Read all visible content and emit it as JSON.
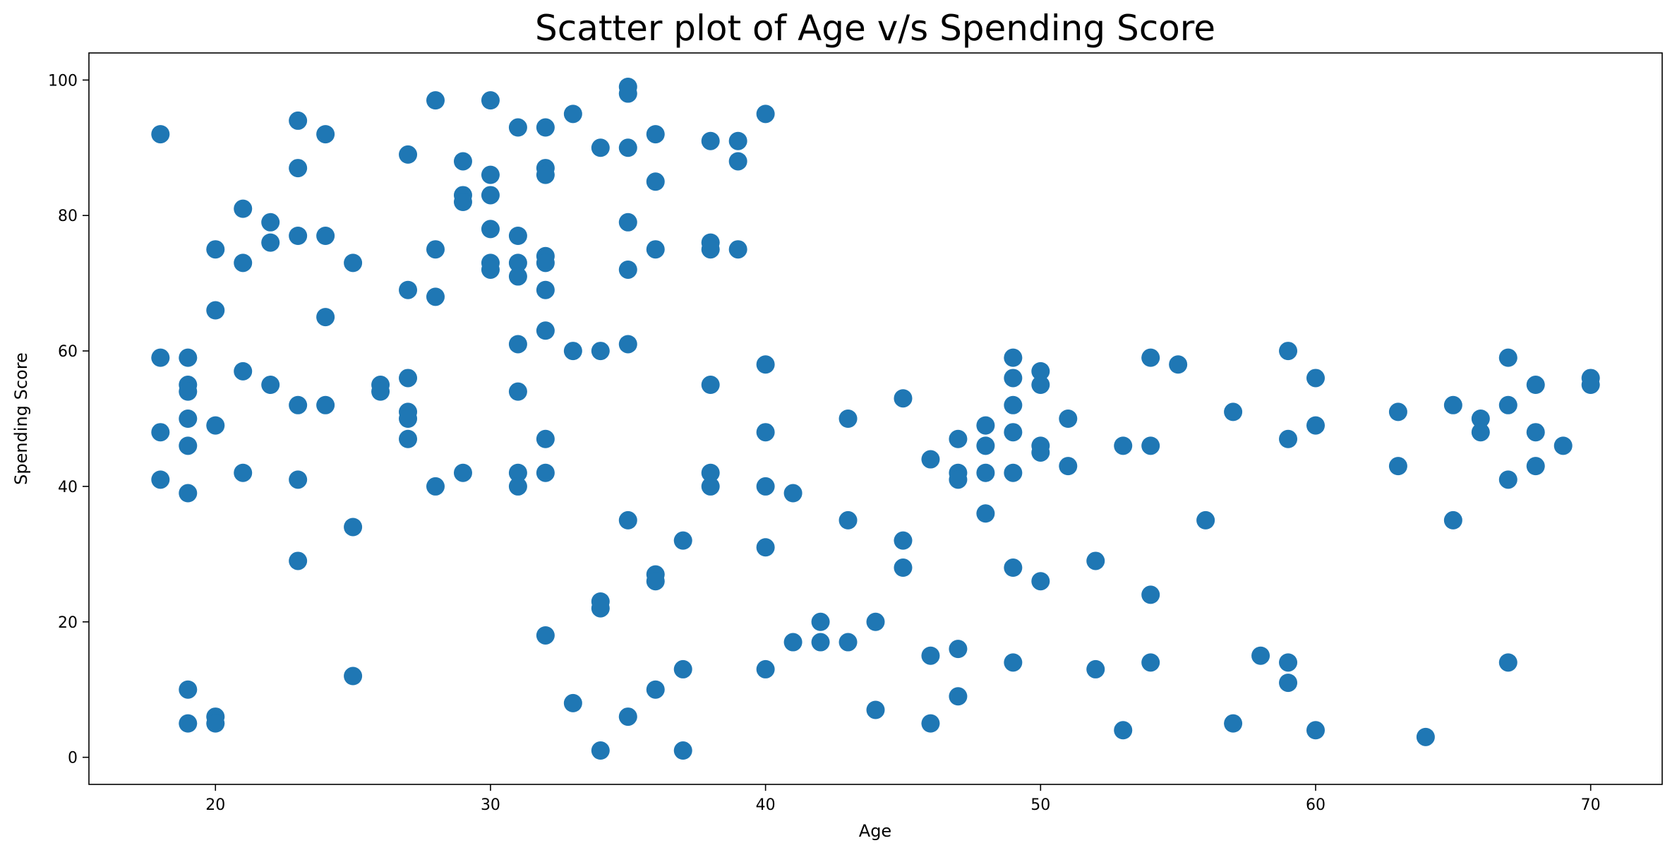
{
  "chart_data": {
    "type": "scatter",
    "title": "Scatter plot of Age v/s Spending Score",
    "xlabel": "Age",
    "ylabel": "Spending Score",
    "xlim": [
      15.4,
      72.6
    ],
    "ylim": [
      -4,
      104
    ],
    "xticks": [
      20,
      30,
      40,
      50,
      60,
      70
    ],
    "yticks": [
      0,
      20,
      40,
      60,
      80,
      100
    ],
    "grid": false,
    "legend": "none",
    "color": "#1f77b4",
    "points": [
      {
        "x": 18,
        "y": 92
      },
      {
        "x": 18,
        "y": 59
      },
      {
        "x": 18,
        "y": 48
      },
      {
        "x": 18,
        "y": 41
      },
      {
        "x": 19,
        "y": 59
      },
      {
        "x": 19,
        "y": 55
      },
      {
        "x": 19,
        "y": 54
      },
      {
        "x": 19,
        "y": 50
      },
      {
        "x": 19,
        "y": 46
      },
      {
        "x": 19,
        "y": 39
      },
      {
        "x": 19,
        "y": 10
      },
      {
        "x": 19,
        "y": 5
      },
      {
        "x": 20,
        "y": 75
      },
      {
        "x": 20,
        "y": 66
      },
      {
        "x": 20,
        "y": 49
      },
      {
        "x": 20,
        "y": 6
      },
      {
        "x": 20,
        "y": 5
      },
      {
        "x": 21,
        "y": 81
      },
      {
        "x": 21,
        "y": 73
      },
      {
        "x": 21,
        "y": 57
      },
      {
        "x": 21,
        "y": 42
      },
      {
        "x": 22,
        "y": 79
      },
      {
        "x": 22,
        "y": 76
      },
      {
        "x": 22,
        "y": 55
      },
      {
        "x": 23,
        "y": 94
      },
      {
        "x": 23,
        "y": 87
      },
      {
        "x": 23,
        "y": 77
      },
      {
        "x": 23,
        "y": 52
      },
      {
        "x": 23,
        "y": 41
      },
      {
        "x": 23,
        "y": 29
      },
      {
        "x": 24,
        "y": 92
      },
      {
        "x": 24,
        "y": 77
      },
      {
        "x": 24,
        "y": 65
      },
      {
        "x": 24,
        "y": 52
      },
      {
        "x": 25,
        "y": 73
      },
      {
        "x": 25,
        "y": 34
      },
      {
        "x": 25,
        "y": 12
      },
      {
        "x": 26,
        "y": 55
      },
      {
        "x": 26,
        "y": 54
      },
      {
        "x": 27,
        "y": 89
      },
      {
        "x": 27,
        "y": 69
      },
      {
        "x": 27,
        "y": 56
      },
      {
        "x": 27,
        "y": 51
      },
      {
        "x": 27,
        "y": 50
      },
      {
        "x": 27,
        "y": 47
      },
      {
        "x": 28,
        "y": 97
      },
      {
        "x": 28,
        "y": 75
      },
      {
        "x": 28,
        "y": 68
      },
      {
        "x": 28,
        "y": 40
      },
      {
        "x": 29,
        "y": 88
      },
      {
        "x": 29,
        "y": 83
      },
      {
        "x": 29,
        "y": 82
      },
      {
        "x": 29,
        "y": 42
      },
      {
        "x": 30,
        "y": 97
      },
      {
        "x": 30,
        "y": 86
      },
      {
        "x": 30,
        "y": 83
      },
      {
        "x": 30,
        "y": 78
      },
      {
        "x": 30,
        "y": 73
      },
      {
        "x": 30,
        "y": 72
      },
      {
        "x": 31,
        "y": 93
      },
      {
        "x": 31,
        "y": 77
      },
      {
        "x": 31,
        "y": 73
      },
      {
        "x": 31,
        "y": 71
      },
      {
        "x": 31,
        "y": 61
      },
      {
        "x": 31,
        "y": 54
      },
      {
        "x": 31,
        "y": 42
      },
      {
        "x": 31,
        "y": 40
      },
      {
        "x": 32,
        "y": 93
      },
      {
        "x": 32,
        "y": 87
      },
      {
        "x": 32,
        "y": 86
      },
      {
        "x": 32,
        "y": 74
      },
      {
        "x": 32,
        "y": 73
      },
      {
        "x": 32,
        "y": 69
      },
      {
        "x": 32,
        "y": 63
      },
      {
        "x": 32,
        "y": 47
      },
      {
        "x": 32,
        "y": 42
      },
      {
        "x": 32,
        "y": 18
      },
      {
        "x": 33,
        "y": 95
      },
      {
        "x": 33,
        "y": 60
      },
      {
        "x": 33,
        "y": 8
      },
      {
        "x": 34,
        "y": 90
      },
      {
        "x": 34,
        "y": 60
      },
      {
        "x": 34,
        "y": 23
      },
      {
        "x": 34,
        "y": 22
      },
      {
        "x": 34,
        "y": 1
      },
      {
        "x": 35,
        "y": 99
      },
      {
        "x": 35,
        "y": 98
      },
      {
        "x": 35,
        "y": 90
      },
      {
        "x": 35,
        "y": 79
      },
      {
        "x": 35,
        "y": 72
      },
      {
        "x": 35,
        "y": 61
      },
      {
        "x": 35,
        "y": 35
      },
      {
        "x": 35,
        "y": 6
      },
      {
        "x": 36,
        "y": 92
      },
      {
        "x": 36,
        "y": 85
      },
      {
        "x": 36,
        "y": 75
      },
      {
        "x": 36,
        "y": 27
      },
      {
        "x": 36,
        "y": 26
      },
      {
        "x": 36,
        "y": 10
      },
      {
        "x": 37,
        "y": 32
      },
      {
        "x": 37,
        "y": 13
      },
      {
        "x": 37,
        "y": 1
      },
      {
        "x": 38,
        "y": 91
      },
      {
        "x": 38,
        "y": 76
      },
      {
        "x": 38,
        "y": 75
      },
      {
        "x": 38,
        "y": 55
      },
      {
        "x": 38,
        "y": 42
      },
      {
        "x": 38,
        "y": 40
      },
      {
        "x": 39,
        "y": 91
      },
      {
        "x": 39,
        "y": 88
      },
      {
        "x": 39,
        "y": 75
      },
      {
        "x": 40,
        "y": 95
      },
      {
        "x": 40,
        "y": 58
      },
      {
        "x": 40,
        "y": 48
      },
      {
        "x": 40,
        "y": 40
      },
      {
        "x": 40,
        "y": 31
      },
      {
        "x": 40,
        "y": 13
      },
      {
        "x": 41,
        "y": 39
      },
      {
        "x": 41,
        "y": 17
      },
      {
        "x": 42,
        "y": 20
      },
      {
        "x": 42,
        "y": 17
      },
      {
        "x": 43,
        "y": 50
      },
      {
        "x": 43,
        "y": 35
      },
      {
        "x": 43,
        "y": 17
      },
      {
        "x": 44,
        "y": 20
      },
      {
        "x": 44,
        "y": 7
      },
      {
        "x": 45,
        "y": 53
      },
      {
        "x": 45,
        "y": 32
      },
      {
        "x": 45,
        "y": 28
      },
      {
        "x": 46,
        "y": 44
      },
      {
        "x": 46,
        "y": 15
      },
      {
        "x": 46,
        "y": 5
      },
      {
        "x": 47,
        "y": 47
      },
      {
        "x": 47,
        "y": 42
      },
      {
        "x": 47,
        "y": 41
      },
      {
        "x": 47,
        "y": 16
      },
      {
        "x": 47,
        "y": 9
      },
      {
        "x": 48,
        "y": 49
      },
      {
        "x": 48,
        "y": 46
      },
      {
        "x": 48,
        "y": 42
      },
      {
        "x": 48,
        "y": 36
      },
      {
        "x": 49,
        "y": 59
      },
      {
        "x": 49,
        "y": 56
      },
      {
        "x": 49,
        "y": 52
      },
      {
        "x": 49,
        "y": 48
      },
      {
        "x": 49,
        "y": 42
      },
      {
        "x": 49,
        "y": 28
      },
      {
        "x": 49,
        "y": 14
      },
      {
        "x": 50,
        "y": 57
      },
      {
        "x": 50,
        "y": 55
      },
      {
        "x": 50,
        "y": 46
      },
      {
        "x": 50,
        "y": 45
      },
      {
        "x": 50,
        "y": 26
      },
      {
        "x": 51,
        "y": 50
      },
      {
        "x": 51,
        "y": 43
      },
      {
        "x": 52,
        "y": 29
      },
      {
        "x": 52,
        "y": 13
      },
      {
        "x": 53,
        "y": 46
      },
      {
        "x": 53,
        "y": 4
      },
      {
        "x": 54,
        "y": 59
      },
      {
        "x": 54,
        "y": 46
      },
      {
        "x": 54,
        "y": 24
      },
      {
        "x": 54,
        "y": 14
      },
      {
        "x": 55,
        "y": 58
      },
      {
        "x": 56,
        "y": 35
      },
      {
        "x": 57,
        "y": 51
      },
      {
        "x": 57,
        "y": 5
      },
      {
        "x": 58,
        "y": 15
      },
      {
        "x": 59,
        "y": 60
      },
      {
        "x": 59,
        "y": 47
      },
      {
        "x": 59,
        "y": 14
      },
      {
        "x": 59,
        "y": 11
      },
      {
        "x": 60,
        "y": 56
      },
      {
        "x": 60,
        "y": 49
      },
      {
        "x": 60,
        "y": 4
      },
      {
        "x": 63,
        "y": 51
      },
      {
        "x": 63,
        "y": 43
      },
      {
        "x": 64,
        "y": 3
      },
      {
        "x": 65,
        "y": 52
      },
      {
        "x": 65,
        "y": 35
      },
      {
        "x": 66,
        "y": 50
      },
      {
        "x": 66,
        "y": 48
      },
      {
        "x": 67,
        "y": 59
      },
      {
        "x": 67,
        "y": 52
      },
      {
        "x": 67,
        "y": 41
      },
      {
        "x": 67,
        "y": 14
      },
      {
        "x": 68,
        "y": 55
      },
      {
        "x": 68,
        "y": 48
      },
      {
        "x": 68,
        "y": 43
      },
      {
        "x": 69,
        "y": 46
      },
      {
        "x": 70,
        "y": 56
      },
      {
        "x": 70,
        "y": 55
      }
    ]
  }
}
